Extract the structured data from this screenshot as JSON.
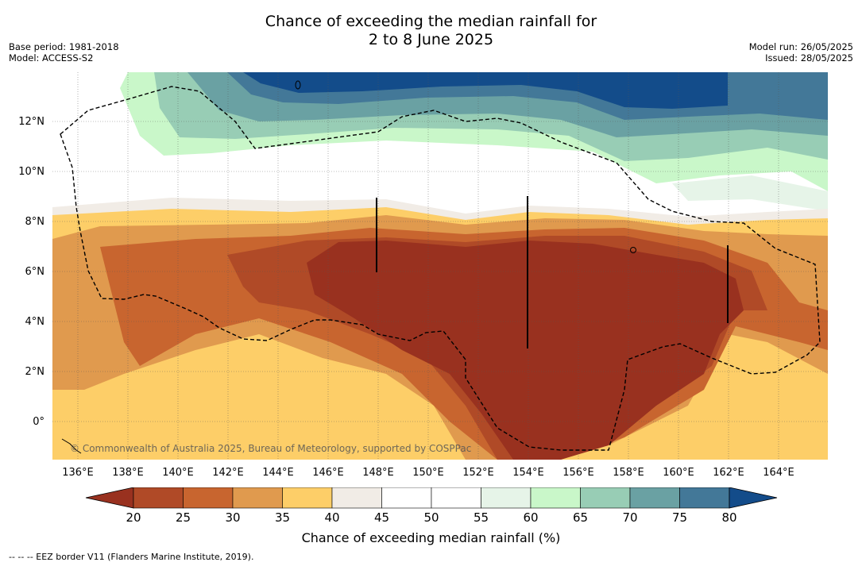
{
  "header": {
    "title_line1": "Chance of exceeding the median rainfall for",
    "title_line2": "2 to 8 June 2025",
    "base_period": "Base period: 1981-2018",
    "model": "Model: ACCESS-S2",
    "model_run": "Model run: 26/05/2025",
    "issued": "Issued: 28/05/2025"
  },
  "map": {
    "lat_labels": [
      "12°N",
      "10°N",
      "8°N",
      "6°N",
      "4°N",
      "2°N",
      "0°"
    ],
    "lon_labels": [
      "136°E",
      "138°E",
      "140°E",
      "142°E",
      "144°E",
      "146°E",
      "148°E",
      "150°E",
      "152°E",
      "154°E",
      "156°E",
      "158°E",
      "160°E",
      "162°E",
      "164°E"
    ],
    "copyright": "© Commonwealth of Australia 2025, Bureau of Meteorology, supported by COSPPac",
    "eez_style": "dashed black line",
    "colors": {
      "c20": "#99311f",
      "c25": "#b04a27",
      "c30": "#c8652f",
      "c35": "#e09a4e",
      "c40": "#fdce68",
      "c45": "#f1ece6",
      "c55": "#ffffff",
      "c60": "#e6f4e8",
      "c65": "#c9f7c9",
      "c70": "#98cdb5",
      "c75": "#6aa1a3",
      "c80": "#437898",
      "c85": "#134c8a"
    }
  },
  "colorbar": {
    "title": "Chance of exceeding median rainfall (%)",
    "labels": [
      "20",
      "25",
      "30",
      "35",
      "40",
      "45",
      "50",
      "55",
      "60",
      "65",
      "70",
      "75",
      "80"
    ],
    "colors": [
      "#99311f",
      "#b04a27",
      "#c8652f",
      "#e09a4e",
      "#fdce68",
      "#f1ece6",
      "#ffffff",
      "#ffffff",
      "#e6f4e8",
      "#c9f7c9",
      "#98cdb5",
      "#6aa1a3",
      "#437898",
      "#134c8a"
    ]
  },
  "footnote": "--  --  -- EEZ border V11 (Flanders Marine Institute, 2019)."
}
